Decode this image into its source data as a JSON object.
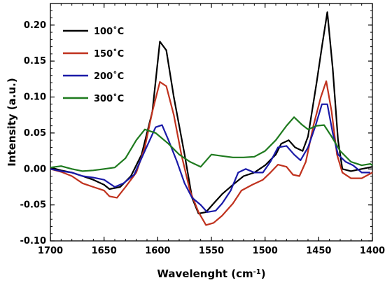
{
  "chart_data": {
    "type": "line",
    "title": "",
    "xlabel_main": "Wavelenght (cm",
    "xlabel_sup": "-1",
    "xlabel_close": ")",
    "ylabel": "Intensity (a.u.)",
    "xlim": [
      1700,
      1400
    ],
    "ylim": [
      -0.1,
      0.23
    ],
    "x_ticks": [
      1700,
      1650,
      1600,
      1550,
      1500,
      1450,
      1400
    ],
    "y_ticks": [
      -0.1,
      -0.05,
      0.0,
      0.05,
      0.1,
      0.15,
      0.2
    ],
    "y_tick_labels": [
      "-0.10",
      "-0.05",
      "0.00",
      "0.05",
      "0.10",
      "0.15",
      "0.20"
    ],
    "legend_placement": "top-left",
    "grid": false,
    "series": [
      {
        "name": "100˚C",
        "color": "#000000",
        "points": [
          [
            1700,
            0.002
          ],
          [
            1690,
            -0.002
          ],
          [
            1680,
            -0.005
          ],
          [
            1670,
            -0.01
          ],
          [
            1660,
            -0.015
          ],
          [
            1650,
            -0.022
          ],
          [
            1645,
            -0.028
          ],
          [
            1635,
            -0.025
          ],
          [
            1625,
            -0.01
          ],
          [
            1615,
            0.02
          ],
          [
            1605,
            0.08
          ],
          [
            1598,
            0.177
          ],
          [
            1592,
            0.165
          ],
          [
            1585,
            0.1
          ],
          [
            1575,
            0.02
          ],
          [
            1568,
            -0.04
          ],
          [
            1562,
            -0.062
          ],
          [
            1555,
            -0.06
          ],
          [
            1548,
            -0.048
          ],
          [
            1540,
            -0.035
          ],
          [
            1530,
            -0.022
          ],
          [
            1520,
            -0.01
          ],
          [
            1510,
            -0.005
          ],
          [
            1500,
            0.005
          ],
          [
            1490,
            0.02
          ],
          [
            1485,
            0.035
          ],
          [
            1478,
            0.04
          ],
          [
            1472,
            0.03
          ],
          [
            1465,
            0.025
          ],
          [
            1460,
            0.045
          ],
          [
            1452,
            0.12
          ],
          [
            1447,
            0.17
          ],
          [
            1442,
            0.218
          ],
          [
            1437,
            0.14
          ],
          [
            1432,
            0.04
          ],
          [
            1428,
            0.0
          ],
          [
            1420,
            -0.003
          ],
          [
            1410,
            0.0
          ],
          [
            1400,
            0.003
          ]
        ]
      },
      {
        "name": "150˚C",
        "color": "#c0321e",
        "points": [
          [
            1700,
            0.0
          ],
          [
            1690,
            -0.004
          ],
          [
            1680,
            -0.01
          ],
          [
            1670,
            -0.02
          ],
          [
            1660,
            -0.025
          ],
          [
            1650,
            -0.03
          ],
          [
            1645,
            -0.038
          ],
          [
            1638,
            -0.04
          ],
          [
            1630,
            -0.025
          ],
          [
            1620,
            -0.005
          ],
          [
            1612,
            0.03
          ],
          [
            1605,
            0.08
          ],
          [
            1598,
            0.121
          ],
          [
            1592,
            0.115
          ],
          [
            1585,
            0.075
          ],
          [
            1578,
            0.02
          ],
          [
            1570,
            -0.03
          ],
          [
            1562,
            -0.06
          ],
          [
            1555,
            -0.078
          ],
          [
            1548,
            -0.075
          ],
          [
            1540,
            -0.065
          ],
          [
            1530,
            -0.048
          ],
          [
            1522,
            -0.03
          ],
          [
            1512,
            -0.022
          ],
          [
            1502,
            -0.015
          ],
          [
            1495,
            -0.005
          ],
          [
            1488,
            0.006
          ],
          [
            1480,
            0.003
          ],
          [
            1474,
            -0.008
          ],
          [
            1468,
            -0.01
          ],
          [
            1462,
            0.01
          ],
          [
            1455,
            0.06
          ],
          [
            1448,
            0.1
          ],
          [
            1443,
            0.122
          ],
          [
            1438,
            0.08
          ],
          [
            1433,
            0.02
          ],
          [
            1428,
            -0.005
          ],
          [
            1420,
            -0.013
          ],
          [
            1410,
            -0.013
          ],
          [
            1400,
            -0.005
          ]
        ]
      },
      {
        "name": "200˚C",
        "color": "#1a1aa8",
        "points": [
          [
            1700,
            0.0
          ],
          [
            1690,
            -0.003
          ],
          [
            1680,
            -0.005
          ],
          [
            1670,
            -0.01
          ],
          [
            1660,
            -0.012
          ],
          [
            1650,
            -0.015
          ],
          [
            1640,
            -0.025
          ],
          [
            1632,
            -0.02
          ],
          [
            1622,
            -0.008
          ],
          [
            1612,
            0.025
          ],
          [
            1602,
            0.058
          ],
          [
            1596,
            0.061
          ],
          [
            1590,
            0.04
          ],
          [
            1582,
            0.01
          ],
          [
            1575,
            -0.02
          ],
          [
            1568,
            -0.04
          ],
          [
            1560,
            -0.05
          ],
          [
            1554,
            -0.06
          ],
          [
            1546,
            -0.058
          ],
          [
            1540,
            -0.048
          ],
          [
            1532,
            -0.03
          ],
          [
            1525,
            -0.005
          ],
          [
            1518,
            0.0
          ],
          [
            1510,
            -0.005
          ],
          [
            1502,
            -0.005
          ],
          [
            1495,
            0.01
          ],
          [
            1488,
            0.03
          ],
          [
            1480,
            0.032
          ],
          [
            1473,
            0.02
          ],
          [
            1467,
            0.012
          ],
          [
            1460,
            0.03
          ],
          [
            1453,
            0.06
          ],
          [
            1447,
            0.09
          ],
          [
            1442,
            0.09
          ],
          [
            1437,
            0.05
          ],
          [
            1432,
            0.02
          ],
          [
            1425,
            0.01
          ],
          [
            1418,
            0.005
          ],
          [
            1410,
            -0.005
          ],
          [
            1402,
            -0.005
          ]
        ]
      },
      {
        "name": "300˚C",
        "color": "#1e7a1e",
        "points": [
          [
            1700,
            0.002
          ],
          [
            1690,
            0.004
          ],
          [
            1680,
            0.0
          ],
          [
            1670,
            -0.003
          ],
          [
            1660,
            -0.002
          ],
          [
            1650,
            0.0
          ],
          [
            1640,
            0.002
          ],
          [
            1630,
            0.015
          ],
          [
            1620,
            0.04
          ],
          [
            1612,
            0.055
          ],
          [
            1602,
            0.05
          ],
          [
            1590,
            0.035
          ],
          [
            1580,
            0.02
          ],
          [
            1570,
            0.01
          ],
          [
            1560,
            0.003
          ],
          [
            1550,
            0.02
          ],
          [
            1540,
            0.018
          ],
          [
            1530,
            0.016
          ],
          [
            1520,
            0.016
          ],
          [
            1510,
            0.017
          ],
          [
            1500,
            0.025
          ],
          [
            1490,
            0.04
          ],
          [
            1480,
            0.06
          ],
          [
            1473,
            0.072
          ],
          [
            1466,
            0.062
          ],
          [
            1460,
            0.055
          ],
          [
            1452,
            0.06
          ],
          [
            1445,
            0.061
          ],
          [
            1438,
            0.045
          ],
          [
            1430,
            0.025
          ],
          [
            1420,
            0.01
          ],
          [
            1410,
            0.005
          ],
          [
            1402,
            0.007
          ],
          [
            1400,
            0.005
          ]
        ]
      }
    ]
  }
}
